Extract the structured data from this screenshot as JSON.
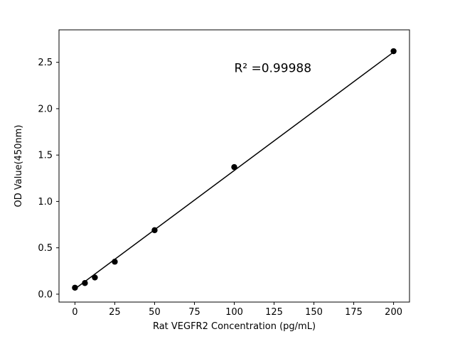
{
  "figure": {
    "background": "#ffffff"
  },
  "chart_data": {
    "type": "scatter",
    "title": "",
    "xlabel": "Rat VEGFR2 Concentration (pg/mL)",
    "ylabel": "OD Value(450nm)",
    "x": [
      0,
      6.25,
      12.5,
      25,
      50,
      100,
      200
    ],
    "y": [
      0.07,
      0.12,
      0.18,
      0.35,
      0.69,
      1.37,
      2.62
    ],
    "fit_line": {
      "x1": 0,
      "x2": 200,
      "slope": 0.012765,
      "intercept": 0.057
    },
    "annotation": {
      "text": "R² =0.99988",
      "fx": 0.61,
      "fy": 0.155
    },
    "xticks": [
      0,
      25,
      50,
      75,
      100,
      125,
      150,
      175,
      200
    ],
    "yticks": [
      0.0,
      0.5,
      1.0,
      1.5,
      2.0,
      2.5
    ],
    "xlim": [
      -10,
      210
    ],
    "ylim": [
      -0.085,
      2.85
    ],
    "grid": false,
    "legend": "none",
    "marker_color": "#000000",
    "line_color": "#000000",
    "axis_color": "#000000"
  }
}
